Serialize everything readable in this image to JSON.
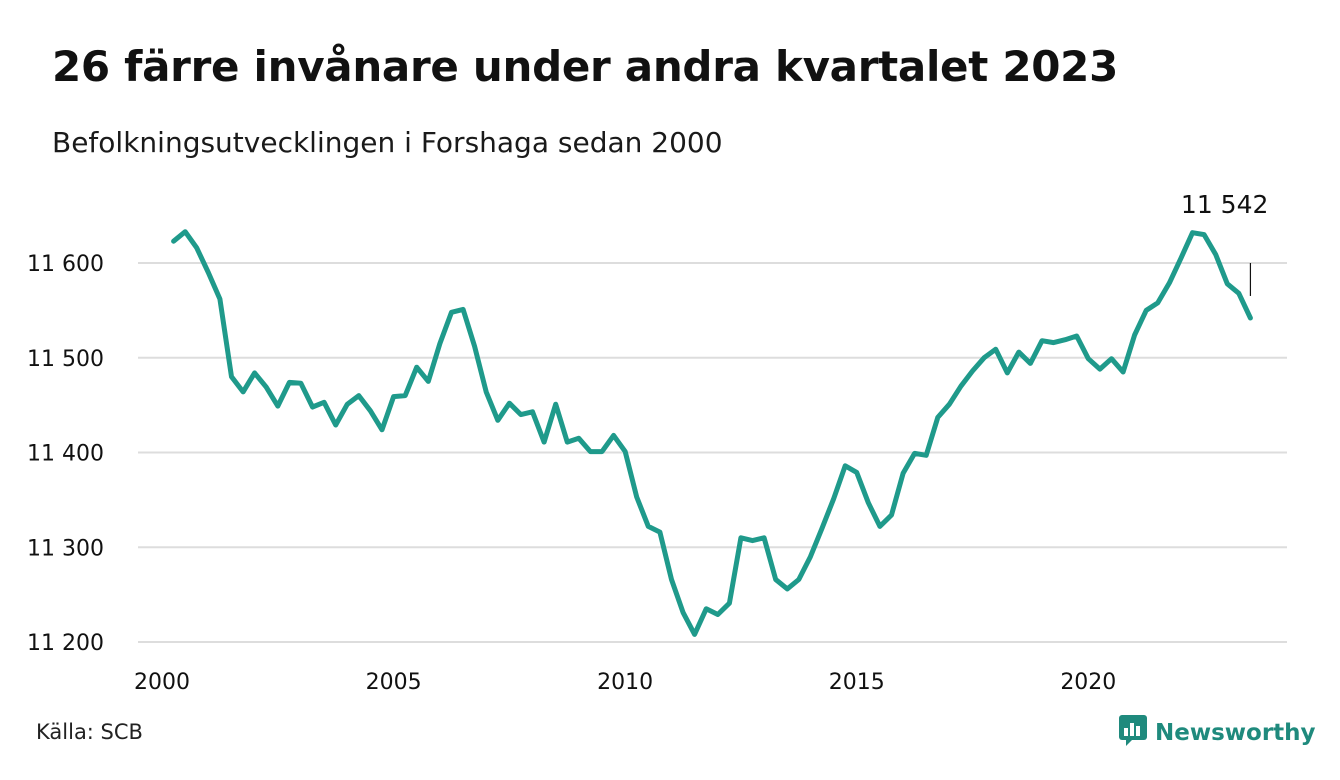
{
  "title": "26 färre invånare under andra kvartalet 2023",
  "subtitle": "Befolkningsutvecklingen i Forshaga sedan 2000",
  "source": "Källa: SCB",
  "brand": {
    "name": "Newsworthy",
    "icon": "newsworthy-logo-icon",
    "color": "#1f8a7d"
  },
  "colors": {
    "line": "#1f9a8b",
    "grid": "#dddddd",
    "text": "#111111"
  },
  "chart_data": {
    "type": "line",
    "title": "26 färre invånare under andra kvartalet 2023",
    "subtitle": "Befolkningsutvecklingen i Forshaga sedan 2000",
    "xlabel": "",
    "ylabel": "",
    "x_ticks": [
      2000,
      2005,
      2010,
      2015,
      2020
    ],
    "x_tick_labels": [
      "2000",
      "2005",
      "2010",
      "2015",
      "2020"
    ],
    "y_ticks": [
      11200,
      11300,
      11400,
      11500,
      11600
    ],
    "y_tick_labels": [
      "11 200",
      "11 300",
      "11 400",
      "11 500",
      "11 600"
    ],
    "xlim": [
      2000,
      2023.75
    ],
    "ylim": [
      11200,
      11600
    ],
    "grid": "horizontal",
    "annotation": {
      "x": 2023.5,
      "y": 11542,
      "label": "11 542"
    },
    "series": [
      {
        "values": [
          [
            2000.25,
            11623
          ],
          [
            2000.5,
            11633
          ],
          [
            2000.75,
            11616
          ],
          [
            2001.0,
            11590
          ],
          [
            2001.25,
            11562
          ],
          [
            2001.5,
            11480
          ],
          [
            2001.75,
            11464
          ],
          [
            2002.0,
            11484
          ],
          [
            2002.25,
            11469
          ],
          [
            2002.5,
            11449
          ],
          [
            2002.75,
            11474
          ],
          [
            2003.0,
            11473
          ],
          [
            2003.25,
            11448
          ],
          [
            2003.5,
            11453
          ],
          [
            2003.75,
            11429
          ],
          [
            2004.0,
            11451
          ],
          [
            2004.25,
            11460
          ],
          [
            2004.5,
            11444
          ],
          [
            2004.75,
            11424
          ],
          [
            2005.0,
            11459
          ],
          [
            2005.25,
            11460
          ],
          [
            2005.5,
            11490
          ],
          [
            2005.75,
            11475
          ],
          [
            2006.0,
            11515
          ],
          [
            2006.25,
            11548
          ],
          [
            2006.5,
            11551
          ],
          [
            2006.75,
            11512
          ],
          [
            2007.0,
            11464
          ],
          [
            2007.25,
            11434
          ],
          [
            2007.5,
            11452
          ],
          [
            2007.75,
            11440
          ],
          [
            2008.0,
            11443
          ],
          [
            2008.25,
            11411
          ],
          [
            2008.5,
            11451
          ],
          [
            2008.75,
            11411
          ],
          [
            2009.0,
            11415
          ],
          [
            2009.25,
            11401
          ],
          [
            2009.5,
            11401
          ],
          [
            2009.75,
            11418
          ],
          [
            2010.0,
            11401
          ],
          [
            2010.25,
            11353
          ],
          [
            2010.5,
            11322
          ],
          [
            2010.75,
            11316
          ],
          [
            2011.0,
            11266
          ],
          [
            2011.25,
            11231
          ],
          [
            2011.5,
            11208
          ],
          [
            2011.75,
            11235
          ],
          [
            2012.0,
            11229
          ],
          [
            2012.25,
            11241
          ],
          [
            2012.5,
            11310
          ],
          [
            2012.75,
            11307
          ],
          [
            2013.0,
            11310
          ],
          [
            2013.25,
            11266
          ],
          [
            2013.5,
            11256
          ],
          [
            2013.75,
            11266
          ],
          [
            2014.0,
            11290
          ],
          [
            2014.25,
            11320
          ],
          [
            2014.5,
            11351
          ],
          [
            2014.75,
            11386
          ],
          [
            2015.0,
            11379
          ],
          [
            2015.25,
            11347
          ],
          [
            2015.5,
            11322
          ],
          [
            2015.75,
            11334
          ],
          [
            2016.0,
            11378
          ],
          [
            2016.25,
            11399
          ],
          [
            2016.5,
            11397
          ],
          [
            2016.75,
            11437
          ],
          [
            2017.0,
            11451
          ],
          [
            2017.25,
            11470
          ],
          [
            2017.5,
            11486
          ],
          [
            2017.75,
            11500
          ],
          [
            2018.0,
            11509
          ],
          [
            2018.25,
            11484
          ],
          [
            2018.5,
            11506
          ],
          [
            2018.75,
            11494
          ],
          [
            2019.0,
            11518
          ],
          [
            2019.25,
            11516
          ],
          [
            2019.5,
            11519
          ],
          [
            2019.75,
            11523
          ],
          [
            2020.0,
            11499
          ],
          [
            2020.25,
            11488
          ],
          [
            2020.5,
            11499
          ],
          [
            2020.75,
            11485
          ],
          [
            2021.0,
            11524
          ],
          [
            2021.25,
            11550
          ],
          [
            2021.5,
            11558
          ],
          [
            2021.75,
            11579
          ],
          [
            2022.0,
            11605
          ],
          [
            2022.25,
            11632
          ],
          [
            2022.5,
            11630
          ],
          [
            2022.75,
            11609
          ],
          [
            2023.0,
            11578
          ],
          [
            2023.25,
            11568
          ],
          [
            2023.5,
            11542
          ]
        ]
      }
    ]
  }
}
